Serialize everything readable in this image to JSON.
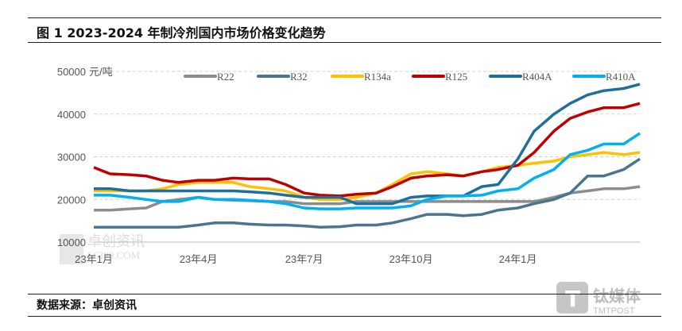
{
  "title": "图 1 2023-2024 年制冷剂国内市场价格变化趋势",
  "source": "数据来源：卓创资讯",
  "watermarks": [
    "卓创资讯",
    "SCI99.COM",
    "钛媒体",
    "TMTPOST"
  ],
  "chart_data": {
    "type": "line",
    "title": "图 1 2023-2024 年制冷剂国内市场价格变化趋势",
    "ylabel": "元/吨",
    "ylim": [
      10000,
      50000
    ],
    "yticks": [
      10000,
      20000,
      30000,
      40000,
      50000
    ],
    "ytick_labels": [
      "10000",
      "20000",
      "30000",
      "40000",
      "50000"
    ],
    "xtick_labels": [
      "23年1月",
      "23年4月",
      "23年7月",
      "23年10月",
      "24年1月"
    ],
    "xtick_dates": [
      "2023-01-01",
      "2023-04-01",
      "2023-07-01",
      "2023-10-01",
      "2024-01-01"
    ],
    "grid": "horizontal dashed",
    "legend": "top",
    "x": [
      "2023-01-01",
      "2023-01-15",
      "2023-02-01",
      "2023-02-15",
      "2023-03-01",
      "2023-03-15",
      "2023-04-01",
      "2023-04-15",
      "2023-05-01",
      "2023-05-15",
      "2023-06-01",
      "2023-06-15",
      "2023-07-01",
      "2023-07-15",
      "2023-08-01",
      "2023-08-15",
      "2023-09-01",
      "2023-09-15",
      "2023-10-01",
      "2023-10-15",
      "2023-11-01",
      "2023-11-15",
      "2023-12-01",
      "2023-12-15",
      "2024-01-01",
      "2024-01-15",
      "2024-02-01",
      "2024-02-15",
      "2024-03-01",
      "2024-03-15",
      "2024-04-01",
      "2024-04-15"
    ],
    "series": [
      {
        "name": "R22",
        "color": "#8c8c8c",
        "values": [
          17500,
          17500,
          17800,
          18000,
          19500,
          20000,
          20500,
          20000,
          19800,
          19700,
          19500,
          19500,
          19000,
          19000,
          19000,
          19500,
          19500,
          19500,
          19500,
          19500,
          19500,
          19500,
          19500,
          19500,
          19500,
          19500,
          20500,
          21500,
          22000,
          22500,
          22500,
          23000
        ]
      },
      {
        "name": "R32",
        "color": "#4a7590",
        "values": [
          13500,
          13500,
          13500,
          13500,
          13500,
          13500,
          14000,
          14500,
          14500,
          14200,
          14000,
          14000,
          13800,
          13500,
          13600,
          14000,
          14000,
          14500,
          15500,
          16500,
          16500,
          16200,
          16500,
          17500,
          18000,
          19000,
          20000,
          21500,
          25500,
          25500,
          27000,
          29500
        ]
      },
      {
        "name": "R134a",
        "color": "#ffc000",
        "values": [
          22000,
          22000,
          22000,
          22000,
          22500,
          23500,
          24000,
          24000,
          24000,
          23000,
          22500,
          22000,
          20500,
          20000,
          20000,
          20500,
          21500,
          23500,
          26000,
          26500,
          26000,
          25500,
          26500,
          27500,
          28000,
          28500,
          29000,
          30000,
          30500,
          31000,
          30500,
          31000
        ]
      },
      {
        "name": "R125",
        "color": "#c00000",
        "values": [
          27500,
          26000,
          25800,
          25500,
          24500,
          24000,
          24500,
          24500,
          25000,
          24800,
          24800,
          23500,
          21500,
          21000,
          20800,
          21200,
          21500,
          23000,
          25000,
          25500,
          25800,
          25500,
          26500,
          27000,
          28000,
          31000,
          36000,
          39000,
          40500,
          41500,
          41500,
          42500
        ]
      },
      {
        "name": "R404A",
        "color": "#1f6e9c",
        "values": [
          22500,
          22500,
          22000,
          22000,
          22000,
          22000,
          22000,
          22000,
          22000,
          21800,
          21500,
          21000,
          20500,
          20500,
          20500,
          19000,
          19000,
          19000,
          20500,
          20800,
          20800,
          20800,
          23000,
          23500,
          29500,
          36000,
          40000,
          42500,
          44500,
          45500,
          46000,
          47000
        ]
      },
      {
        "name": "R410A",
        "color": "#00b0f0",
        "values": [
          21000,
          21000,
          20500,
          20000,
          19500,
          19500,
          20500,
          20000,
          20000,
          19800,
          19500,
          19000,
          18000,
          17800,
          17800,
          18000,
          18000,
          18000,
          18500,
          20000,
          20800,
          20800,
          21000,
          22000,
          22500,
          25000,
          27000,
          30500,
          31500,
          33000,
          33000,
          35500
        ]
      }
    ]
  }
}
